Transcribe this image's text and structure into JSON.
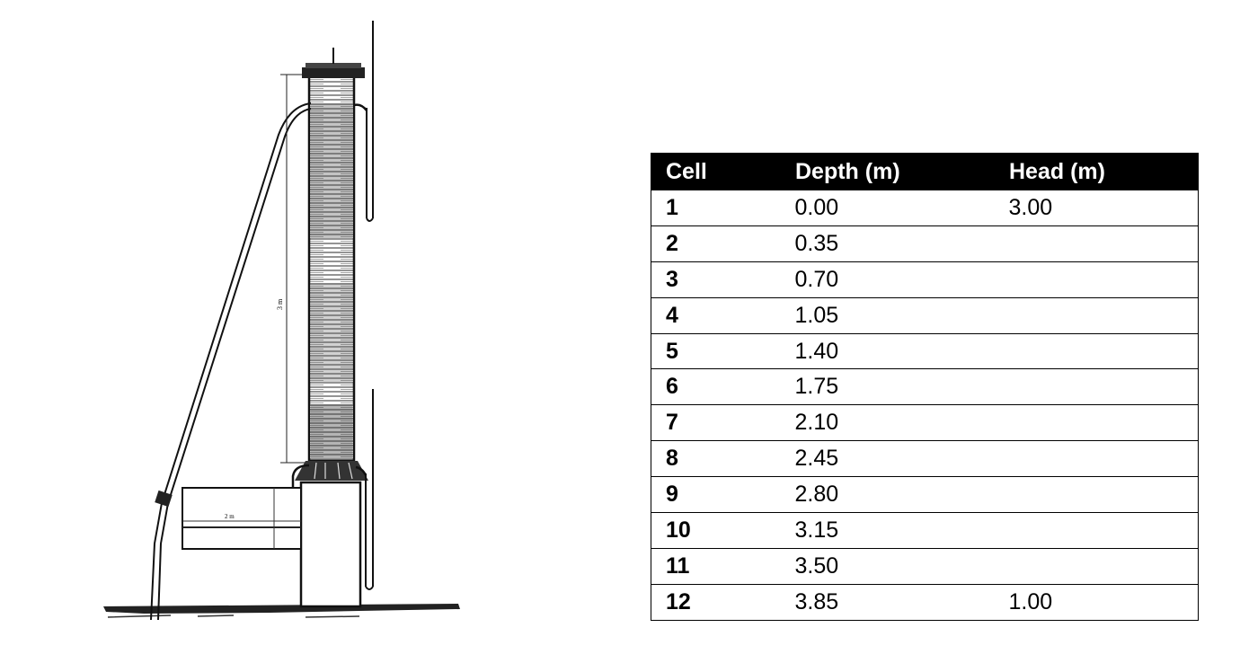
{
  "table": {
    "headers": [
      "Cell",
      "Depth (m)",
      "Head (m)"
    ],
    "rows": [
      [
        "1",
        "0.00",
        "3.00"
      ],
      [
        "2",
        "0.35",
        ""
      ],
      [
        "3",
        "0.70",
        ""
      ],
      [
        "4",
        "1.05",
        ""
      ],
      [
        "5",
        "1.40",
        ""
      ],
      [
        "6",
        "1.75",
        ""
      ],
      [
        "7",
        "2.10",
        ""
      ],
      [
        "8",
        "2.45",
        ""
      ],
      [
        "9",
        "2.80",
        ""
      ],
      [
        "10",
        "3.15",
        ""
      ],
      [
        "11",
        "3.50",
        ""
      ],
      [
        "12",
        "3.85",
        "1.00"
      ]
    ]
  },
  "diagram": {
    "label_height": "3 m",
    "label_basin": "2 m"
  }
}
